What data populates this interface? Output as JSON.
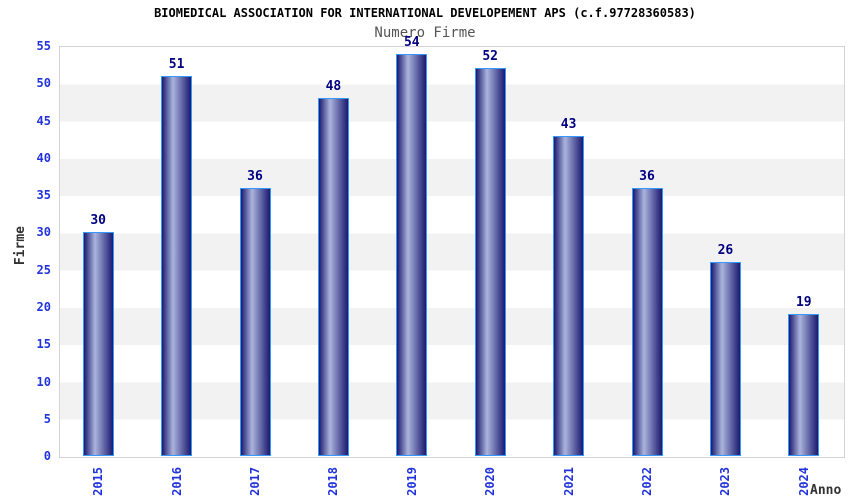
{
  "title": "BIOMEDICAL ASSOCIATION FOR INTERNATIONAL DEVELOPEMENT APS (c.f.97728360583)",
  "subtitle": "Numero Firme",
  "chart_data": {
    "type": "bar",
    "title": "Numero Firme",
    "categories": [
      "2015",
      "2016",
      "2017",
      "2018",
      "2019",
      "2020",
      "2021",
      "2022",
      "2023",
      "2024"
    ],
    "values": [
      30,
      51,
      36,
      48,
      54,
      52,
      43,
      36,
      26,
      19
    ],
    "xlabel": "Anno",
    "ylabel": "Firme",
    "ylim": [
      0,
      55
    ],
    "ytick_step": 5,
    "yticks": [
      0,
      5,
      10,
      15,
      20,
      25,
      30,
      35,
      40,
      45,
      50,
      55
    ],
    "grid": "alternating-horizontal-bands",
    "legend": "none",
    "bar_value_labels_shown": true,
    "x_labels_rotated_degrees": 90
  },
  "colors": {
    "title": "#000000",
    "subtitle": "#555555",
    "axis_title": "#333333",
    "tick_label": "#2233dd",
    "value_label": "#000080",
    "bar_dark": "#1a1a70",
    "bar_light": "#aab4dc",
    "bar_border": "#3399ff",
    "band": "#f2f2f2",
    "plot_border": "#d4d4d4"
  }
}
